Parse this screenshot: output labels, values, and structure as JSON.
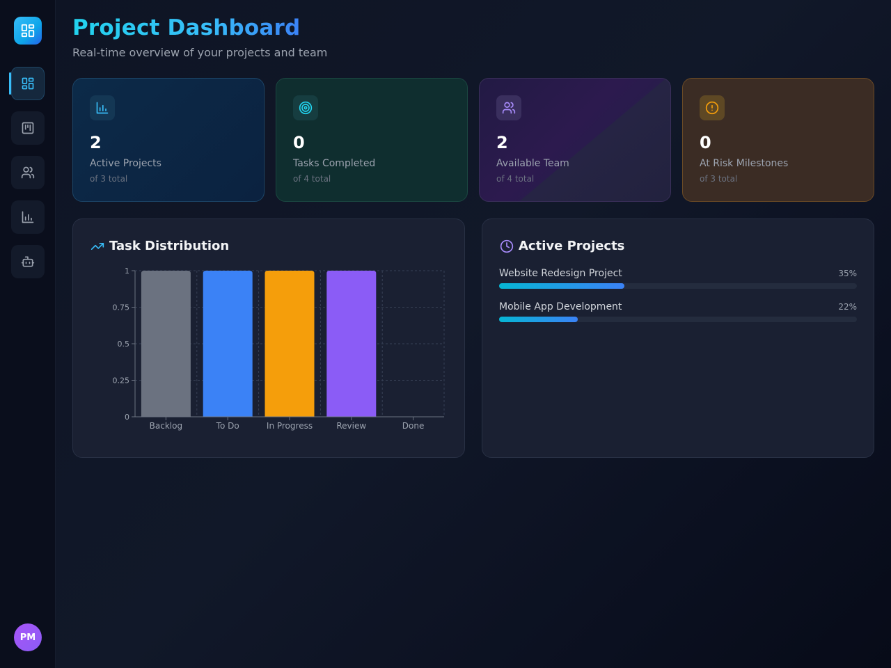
{
  "header": {
    "title": "Project Dashboard",
    "subtitle": "Real-time overview of your projects and team"
  },
  "sidebar": {
    "logo_icon": "dashboard-grid-icon",
    "items": [
      {
        "name": "dashboard",
        "icon": "layout-grid-icon",
        "active": true
      },
      {
        "name": "kanban",
        "icon": "kanban-board-icon",
        "active": false
      },
      {
        "name": "team",
        "icon": "users-icon",
        "active": false
      },
      {
        "name": "analytics",
        "icon": "bar-chart-icon",
        "active": false
      },
      {
        "name": "assistant",
        "icon": "bot-icon",
        "active": false
      }
    ],
    "avatar_initials": "PM"
  },
  "stats": [
    {
      "value": "2",
      "label": "Active Projects",
      "sub": "of 3 total",
      "icon": "bar-chart-icon",
      "color": "#38bdf8"
    },
    {
      "value": "0",
      "label": "Tasks Completed",
      "sub": "of 4 total",
      "icon": "target-icon",
      "color": "#22d3ee"
    },
    {
      "value": "2",
      "label": "Available Team",
      "sub": "of 4 total",
      "icon": "users-icon",
      "color": "#a78bfa"
    },
    {
      "value": "0",
      "label": "At Risk Milestones",
      "sub": "of 3 total",
      "icon": "alert-circle-icon",
      "color": "#f59e0b"
    }
  ],
  "task_panel": {
    "title": "Task Distribution",
    "icon": "trending-up-icon"
  },
  "projects_panel": {
    "title": "Active Projects",
    "icon": "clock-icon",
    "projects": [
      {
        "name": "Website Redesign Project",
        "pct_label": "35%",
        "progress": 0.35
      },
      {
        "name": "Mobile App Development",
        "pct_label": "22%",
        "progress": 0.22
      }
    ]
  },
  "chart_data": {
    "type": "bar",
    "categories": [
      "Backlog",
      "To Do",
      "In Progress",
      "Review",
      "Done"
    ],
    "values": [
      1,
      1,
      1,
      1,
      0
    ],
    "colors": [
      "#6b7280",
      "#3b82f6",
      "#f59e0b",
      "#8b5cf6",
      "#10b981"
    ],
    "yticks": [
      "0",
      "0.25",
      "0.5",
      "0.75",
      "1"
    ],
    "ylim": [
      0,
      1
    ],
    "grid": true,
    "xlabel": "",
    "ylabel": ""
  }
}
